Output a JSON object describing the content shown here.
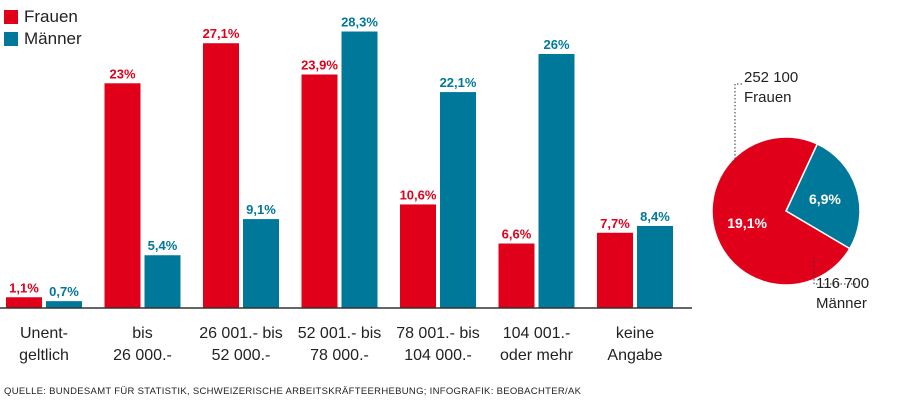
{
  "legend": {
    "frauen": "Frauen",
    "maenner": "Männer"
  },
  "colors": {
    "frauen": "#e0001a",
    "maenner": "#00789a"
  },
  "chart_data": [
    {
      "type": "bar",
      "categories": [
        [
          "Unent-",
          "geltlich"
        ],
        [
          "bis",
          "26 000.-"
        ],
        [
          "26 001.- bis",
          "52 000.-"
        ],
        [
          "52 001.- bis",
          "78 000.-"
        ],
        [
          "78 001.- bis",
          "104 000.-"
        ],
        [
          "104 001.-",
          "oder mehr"
        ],
        [
          "keine",
          "Angabe"
        ]
      ],
      "series": [
        {
          "name": "Frauen",
          "values": [
            1.1,
            23,
            27.1,
            23.9,
            10.6,
            6.6,
            7.7
          ],
          "labels": [
            "1,1%",
            "23%",
            "27,1%",
            "23,9%",
            "10,6%",
            "6,6%",
            "7,7%"
          ]
        },
        {
          "name": "Männer",
          "values": [
            0.7,
            5.4,
            9.1,
            28.3,
            22.1,
            26,
            8.4
          ],
          "labels": [
            "0,7%",
            "5,4%",
            "9,1%",
            "28,3%",
            "22,1%",
            "26%",
            "8,4%"
          ]
        }
      ],
      "ylim": [
        0,
        30
      ],
      "xlabel": "",
      "ylabel": "",
      "title": ""
    },
    {
      "type": "pie",
      "slices": [
        {
          "name": "Frauen",
          "value": 19.1,
          "label": "19,1%",
          "count_label": "252 100",
          "name_label": "Frauen"
        },
        {
          "name": "Männer",
          "value": 6.9,
          "label": "6,9%",
          "count_label": "116 700",
          "name_label": "Männer"
        }
      ]
    }
  ],
  "source": "QUELLE: BUNDESAMT FÜR STATISTIK, SCHWEIZERISCHE ARBEITSKRÄFTEERHEBUNG; INFOGRAFIK: BEOBACHTER/AK"
}
